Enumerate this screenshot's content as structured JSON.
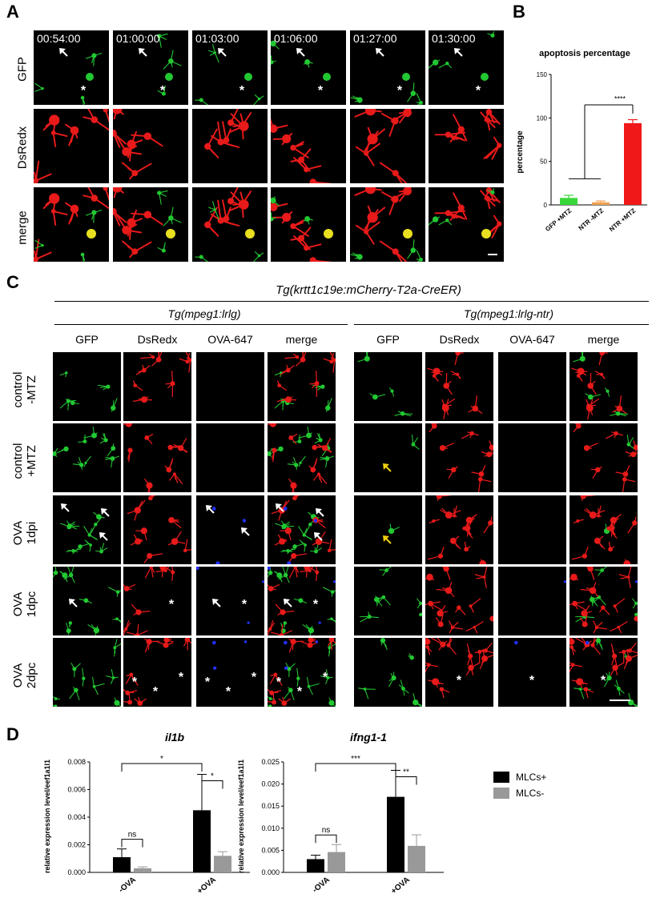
{
  "panel_letters": {
    "A": "A",
    "B": "B",
    "C": "C",
    "D": "D"
  },
  "panel_a": {
    "timestamps": [
      "00:54:00",
      "01:00:00",
      "01:03:00",
      "01:06:00",
      "01:27:00",
      "01:30:00"
    ],
    "row_labels": [
      "GFP",
      "DsRedx",
      "merge"
    ]
  },
  "panel_c": {
    "header": "Tg(krtt1c19e:mCherry-T2a-CreER)",
    "group_left": "Tg(mpeg1:lrlg)",
    "group_right": "Tg(mpeg1:lrlg-ntr)",
    "columns": [
      "GFP",
      "DsRedx",
      "OVA-647",
      "merge"
    ],
    "rows": [
      [
        "control",
        "-MTZ"
      ],
      [
        "control",
        "+MTZ"
      ],
      [
        "OVA",
        "1dpi"
      ],
      [
        "OVA",
        "1dpc"
      ],
      [
        "OVA",
        "2dpc"
      ]
    ]
  },
  "colors": {
    "gfp": "#22c832",
    "dsred": "#e81a1a",
    "ova": "#2230ff",
    "merge_yellow": "#e8e020",
    "arrow_yellow": "#f0d010"
  },
  "chart_data": [
    {
      "type": "bar",
      "title": "apoptosis percentage",
      "ylabel": "percentage",
      "categories": [
        "GFP +MTZ",
        "NTR -MTZ",
        "NTR +MTZ"
      ],
      "values": [
        8,
        3,
        94
      ],
      "errors": [
        3,
        1.5,
        4
      ],
      "bar_colors": [
        "#39d739",
        "#f0a050",
        "#f01818"
      ],
      "ylim": [
        0,
        150
      ],
      "yticks": [
        "0",
        "50",
        "100",
        "150"
      ],
      "significance": "****"
    },
    {
      "type": "bar",
      "title": "il1b",
      "ylabel": "relative expression level/eef1a1l1",
      "categories": [
        "-OVA",
        "+OVA"
      ],
      "series": [
        {
          "name": "MLCs+",
          "values": [
            0.0011,
            0.0045
          ],
          "errors": [
            0.0006,
            0.0026
          ]
        },
        {
          "name": "MLCs-",
          "values": [
            0.0003,
            0.0012
          ],
          "errors": [
            0.0001,
            0.0003
          ]
        }
      ],
      "ylim": [
        0,
        0.008
      ],
      "yticks": [
        "0.000",
        "0.002",
        "0.004",
        "0.006",
        "0.008"
      ],
      "significance": {
        "left": "ns",
        "top": "*",
        "right": "*"
      }
    },
    {
      "type": "bar",
      "title": "ifng1-1",
      "ylabel": "relative expression level/eef1a1l1",
      "categories": [
        "-OVA",
        "+OVA"
      ],
      "series": [
        {
          "name": "MLCs+",
          "values": [
            0.003,
            0.0171
          ],
          "errors": [
            0.0009,
            0.006
          ]
        },
        {
          "name": "MLCs-",
          "values": [
            0.0046,
            0.006
          ],
          "errors": [
            0.0017,
            0.0025
          ]
        }
      ],
      "ylim": [
        0,
        0.025
      ],
      "yticks": [
        "0.000",
        "0.005",
        "0.010",
        "0.015",
        "0.020",
        "0.025"
      ],
      "significance": {
        "left": "ns",
        "top": "***",
        "right": "**"
      },
      "legend": [
        "MLCs+",
        "MLCs-"
      ],
      "legend_colors": [
        "#000000",
        "#999999"
      ]
    }
  ]
}
